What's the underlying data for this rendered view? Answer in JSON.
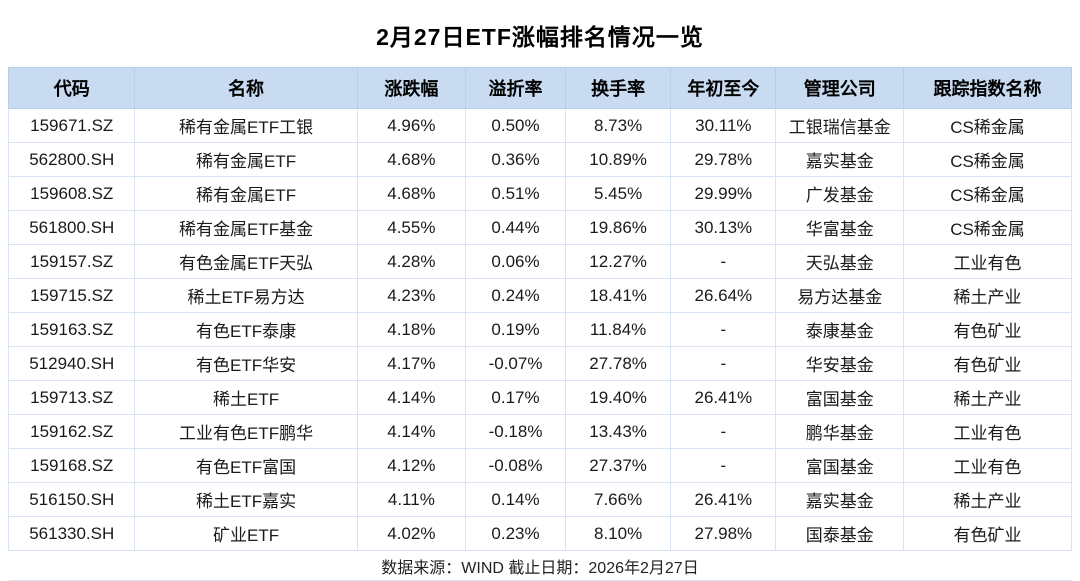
{
  "page": {
    "title": "2月27日ETF涨幅排名情况一览",
    "footer": "数据来源：WIND 截止日期：2026年2月27日"
  },
  "colors": {
    "header_bg": "#c9dbf0",
    "border": "#d9e4f2",
    "text": "#111111"
  },
  "table": {
    "columns": [
      "代码",
      "名称",
      "涨跌幅",
      "溢折率",
      "换手率",
      "年初至今",
      "管理公司",
      "跟踪指数名称"
    ],
    "col_widths_pct": [
      11.9,
      20.9,
      10.2,
      9.4,
      9.9,
      9.9,
      12.0,
      15.8
    ],
    "rows": [
      [
        "159671.SZ",
        "稀有金属ETF工银",
        "4.96%",
        "0.50%",
        "8.73%",
        "30.11%",
        "工银瑞信基金",
        "CS稀金属"
      ],
      [
        "562800.SH",
        "稀有金属ETF",
        "4.68%",
        "0.36%",
        "10.89%",
        "29.78%",
        "嘉实基金",
        "CS稀金属"
      ],
      [
        "159608.SZ",
        "稀有金属ETF",
        "4.68%",
        "0.51%",
        "5.45%",
        "29.99%",
        "广发基金",
        "CS稀金属"
      ],
      [
        "561800.SH",
        "稀有金属ETF基金",
        "4.55%",
        "0.44%",
        "19.86%",
        "30.13%",
        "华富基金",
        "CS稀金属"
      ],
      [
        "159157.SZ",
        "有色金属ETF天弘",
        "4.28%",
        "0.06%",
        "12.27%",
        "-",
        "天弘基金",
        "工业有色"
      ],
      [
        "159715.SZ",
        "稀土ETF易方达",
        "4.23%",
        "0.24%",
        "18.41%",
        "26.64%",
        "易方达基金",
        "稀土产业"
      ],
      [
        "159163.SZ",
        "有色ETF泰康",
        "4.18%",
        "0.19%",
        "11.84%",
        "-",
        "泰康基金",
        "有色矿业"
      ],
      [
        "512940.SH",
        "有色ETF华安",
        "4.17%",
        "-0.07%",
        "27.78%",
        "-",
        "华安基金",
        "有色矿业"
      ],
      [
        "159713.SZ",
        "稀土ETF",
        "4.14%",
        "0.17%",
        "19.40%",
        "26.41%",
        "富国基金",
        "稀土产业"
      ],
      [
        "159162.SZ",
        "工业有色ETF鹏华",
        "4.14%",
        "-0.18%",
        "13.43%",
        "-",
        "鹏华基金",
        "工业有色"
      ],
      [
        "159168.SZ",
        "有色ETF富国",
        "4.12%",
        "-0.08%",
        "27.37%",
        "-",
        "富国基金",
        "工业有色"
      ],
      [
        "516150.SH",
        "稀土ETF嘉实",
        "4.11%",
        "0.14%",
        "7.66%",
        "26.41%",
        "嘉实基金",
        "稀土产业"
      ],
      [
        "561330.SH",
        "矿业ETF",
        "4.02%",
        "0.23%",
        "8.10%",
        "27.98%",
        "国泰基金",
        "有色矿业"
      ]
    ]
  }
}
